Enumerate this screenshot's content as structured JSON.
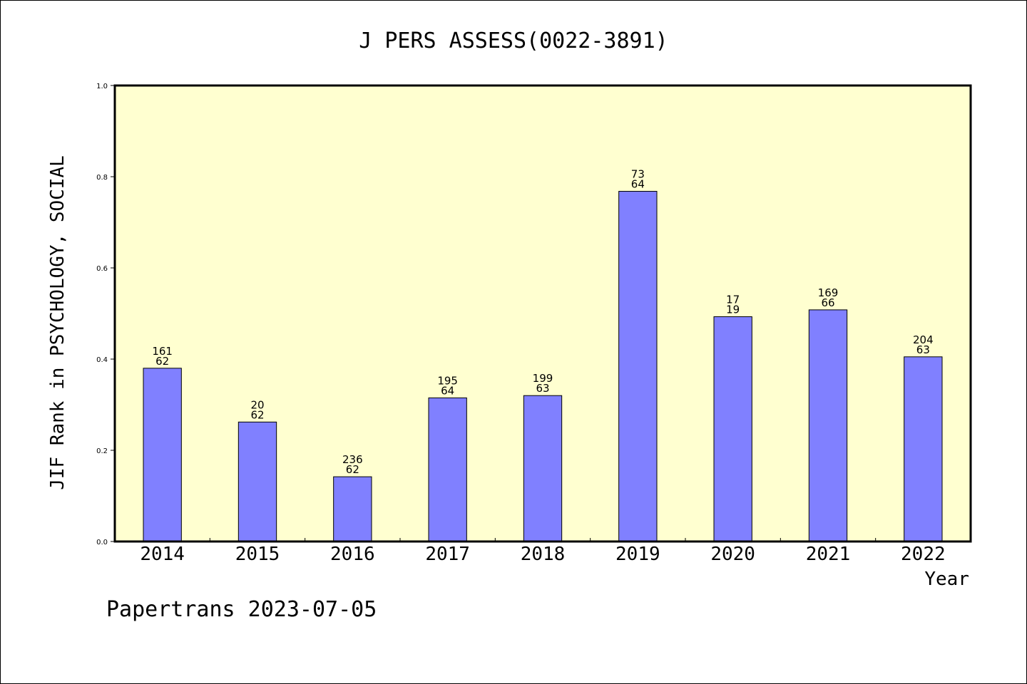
{
  "chart_data": {
    "type": "bar",
    "title": "J PERS ASSESS(0022-3891)",
    "xlabel": "Year",
    "ylabel": "JIF Rank in PSYCHOLOGY, SOCIAL",
    "categories": [
      "2014",
      "2015",
      "2016",
      "2017",
      "2018",
      "2019",
      "2020",
      "2021",
      "2022"
    ],
    "values": [
      0.38,
      0.262,
      0.142,
      0.315,
      0.32,
      0.768,
      0.493,
      0.508,
      0.405
    ],
    "bar_labels": [
      [
        "161",
        "62"
      ],
      [
        "20",
        "62"
      ],
      [
        "236",
        "62"
      ],
      [
        "195",
        "64"
      ],
      [
        "199",
        "63"
      ],
      [
        "73",
        "64"
      ],
      [
        "17",
        "19"
      ],
      [
        "169",
        "66"
      ],
      [
        "204",
        "63"
      ]
    ],
    "ylim": [
      0,
      1.0
    ],
    "yticks": [
      "0.0",
      "0.2",
      "0.4",
      "0.6",
      "0.8",
      "1.0"
    ],
    "grid": false,
    "colors": {
      "plot_background": "#ffffd0",
      "bar_fill": "#8080ff",
      "bar_stroke": "#000000",
      "axis": "#000000",
      "text": "#000000"
    },
    "footer": "Papertrans 2023-07-05"
  }
}
